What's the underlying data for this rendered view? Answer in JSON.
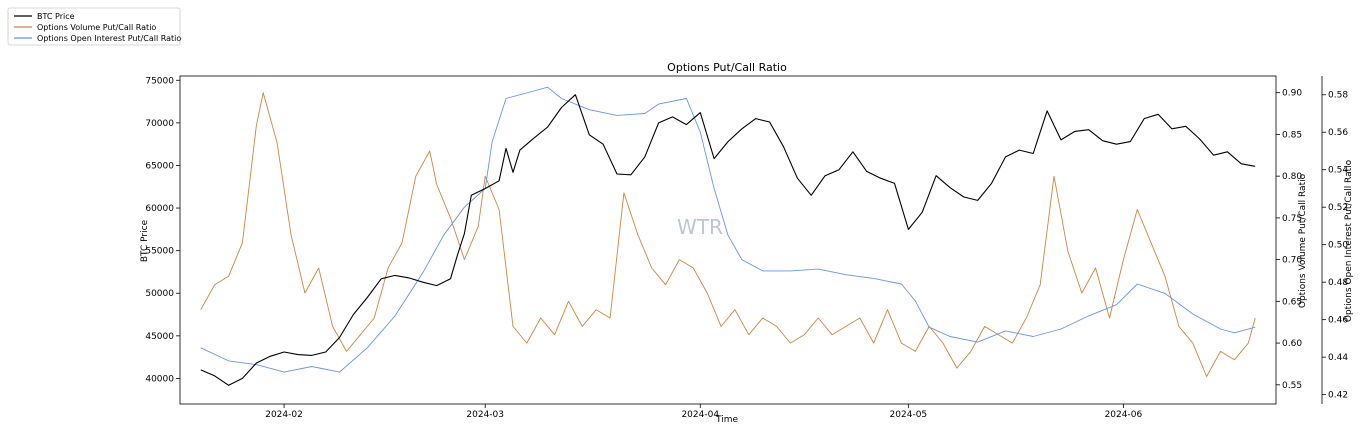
{
  "chart_data": {
    "type": "line",
    "title": "Options Put/Call Ratio",
    "xlabel": "Time",
    "watermark": "WTR",
    "x_ticks": [
      "2024-02",
      "2024-03",
      "2024-04",
      "2024-05",
      "2024-06"
    ],
    "x_range": [
      "2024-01-17",
      "2024-06-23"
    ],
    "legend_position": "top-left, outside plot",
    "grid": false,
    "axes": {
      "left": {
        "label": "BTC Price",
        "ylim": [
          37000,
          75500
        ],
        "ticks": [
          40000,
          45000,
          50000,
          55000,
          60000,
          65000,
          70000,
          75000
        ]
      },
      "right1": {
        "label": "Options Volume Put/Call Ratio",
        "ylim": [
          0.527,
          0.92
        ],
        "ticks": [
          0.55,
          0.6,
          0.65,
          0.7,
          0.75,
          0.8,
          0.85,
          0.9
        ]
      },
      "right2": {
        "label": "Options Open Interest Put/Call Ratio",
        "ylim": [
          0.415,
          0.59
        ],
        "ticks": [
          0.42,
          0.44,
          0.46,
          0.48,
          0.5,
          0.52,
          0.54,
          0.56,
          0.58
        ]
      }
    },
    "series": [
      {
        "name": "BTC Price",
        "axis": "left",
        "color": "#000000",
        "points": [
          [
            "2024-01-20",
            41000
          ],
          [
            "2024-01-22",
            40300
          ],
          [
            "2024-01-24",
            39200
          ],
          [
            "2024-01-26",
            40000
          ],
          [
            "2024-01-28",
            41800
          ],
          [
            "2024-01-30",
            42600
          ],
          [
            "2024-02-01",
            43100
          ],
          [
            "2024-02-03",
            42800
          ],
          [
            "2024-02-05",
            42700
          ],
          [
            "2024-02-07",
            43100
          ],
          [
            "2024-02-09",
            44800
          ],
          [
            "2024-02-11",
            47500
          ],
          [
            "2024-02-13",
            49500
          ],
          [
            "2024-02-15",
            51700
          ],
          [
            "2024-02-17",
            52100
          ],
          [
            "2024-02-19",
            51800
          ],
          [
            "2024-02-21",
            51300
          ],
          [
            "2024-02-23",
            50900
          ],
          [
            "2024-02-25",
            51700
          ],
          [
            "2024-02-26",
            54500
          ],
          [
            "2024-02-27",
            57000
          ],
          [
            "2024-02-28",
            61500
          ],
          [
            "2024-03-01",
            62300
          ],
          [
            "2024-03-03",
            63200
          ],
          [
            "2024-03-04",
            67000
          ],
          [
            "2024-03-05",
            64200
          ],
          [
            "2024-03-06",
            66800
          ],
          [
            "2024-03-08",
            68200
          ],
          [
            "2024-03-10",
            69500
          ],
          [
            "2024-03-12",
            71800
          ],
          [
            "2024-03-14",
            73300
          ],
          [
            "2024-03-16",
            68600
          ],
          [
            "2024-03-18",
            67500
          ],
          [
            "2024-03-20",
            64000
          ],
          [
            "2024-03-22",
            63900
          ],
          [
            "2024-03-24",
            66000
          ],
          [
            "2024-03-26",
            70000
          ],
          [
            "2024-03-28",
            70700
          ],
          [
            "2024-03-30",
            69800
          ],
          [
            "2024-04-01",
            71200
          ],
          [
            "2024-04-03",
            65800
          ],
          [
            "2024-04-05",
            67800
          ],
          [
            "2024-04-07",
            69300
          ],
          [
            "2024-04-09",
            70500
          ],
          [
            "2024-04-11",
            70100
          ],
          [
            "2024-04-13",
            67200
          ],
          [
            "2024-04-15",
            63500
          ],
          [
            "2024-04-17",
            61500
          ],
          [
            "2024-04-19",
            63800
          ],
          [
            "2024-04-21",
            64500
          ],
          [
            "2024-04-23",
            66600
          ],
          [
            "2024-04-25",
            64300
          ],
          [
            "2024-04-27",
            63500
          ],
          [
            "2024-04-29",
            62900
          ],
          [
            "2024-05-01",
            57500
          ],
          [
            "2024-05-03",
            59500
          ],
          [
            "2024-05-05",
            63800
          ],
          [
            "2024-05-07",
            62400
          ],
          [
            "2024-05-09",
            61300
          ],
          [
            "2024-05-11",
            60900
          ],
          [
            "2024-05-13",
            62900
          ],
          [
            "2024-05-15",
            66000
          ],
          [
            "2024-05-17",
            66800
          ],
          [
            "2024-05-19",
            66400
          ],
          [
            "2024-05-21",
            71400
          ],
          [
            "2024-05-23",
            68000
          ],
          [
            "2024-05-25",
            69000
          ],
          [
            "2024-05-27",
            69200
          ],
          [
            "2024-05-29",
            67900
          ],
          [
            "2024-05-31",
            67500
          ],
          [
            "2024-06-02",
            67800
          ],
          [
            "2024-06-04",
            70500
          ],
          [
            "2024-06-06",
            71000
          ],
          [
            "2024-06-08",
            69300
          ],
          [
            "2024-06-10",
            69600
          ],
          [
            "2024-06-12",
            68100
          ],
          [
            "2024-06-14",
            66200
          ],
          [
            "2024-06-16",
            66600
          ],
          [
            "2024-06-18",
            65200
          ],
          [
            "2024-06-20",
            64900
          ]
        ]
      },
      {
        "name": "Options Volume Put/Call Ratio",
        "axis": "right1",
        "color": "#cd853f",
        "points": [
          [
            "2024-01-20",
            0.64
          ],
          [
            "2024-01-22",
            0.67
          ],
          [
            "2024-01-24",
            0.68
          ],
          [
            "2024-01-26",
            0.72
          ],
          [
            "2024-01-28",
            0.86
          ],
          [
            "2024-01-29",
            0.9
          ],
          [
            "2024-01-31",
            0.84
          ],
          [
            "2024-02-02",
            0.73
          ],
          [
            "2024-02-04",
            0.66
          ],
          [
            "2024-02-06",
            0.69
          ],
          [
            "2024-02-08",
            0.62
          ],
          [
            "2024-02-10",
            0.59
          ],
          [
            "2024-02-12",
            0.61
          ],
          [
            "2024-02-14",
            0.63
          ],
          [
            "2024-02-16",
            0.69
          ],
          [
            "2024-02-18",
            0.72
          ],
          [
            "2024-02-20",
            0.8
          ],
          [
            "2024-02-22",
            0.83
          ],
          [
            "2024-02-23",
            0.79
          ],
          [
            "2024-02-25",
            0.75
          ],
          [
            "2024-02-27",
            0.7
          ],
          [
            "2024-02-29",
            0.74
          ],
          [
            "2024-03-01",
            0.8
          ],
          [
            "2024-03-03",
            0.76
          ],
          [
            "2024-03-05",
            0.62
          ],
          [
            "2024-03-07",
            0.6
          ],
          [
            "2024-03-09",
            0.63
          ],
          [
            "2024-03-11",
            0.61
          ],
          [
            "2024-03-13",
            0.65
          ],
          [
            "2024-03-15",
            0.62
          ],
          [
            "2024-03-17",
            0.64
          ],
          [
            "2024-03-19",
            0.63
          ],
          [
            "2024-03-21",
            0.78
          ],
          [
            "2024-03-23",
            0.73
          ],
          [
            "2024-03-25",
            0.69
          ],
          [
            "2024-03-27",
            0.67
          ],
          [
            "2024-03-29",
            0.7
          ],
          [
            "2024-03-31",
            0.69
          ],
          [
            "2024-04-02",
            0.66
          ],
          [
            "2024-04-04",
            0.62
          ],
          [
            "2024-04-06",
            0.64
          ],
          [
            "2024-04-08",
            0.61
          ],
          [
            "2024-04-10",
            0.63
          ],
          [
            "2024-04-12",
            0.62
          ],
          [
            "2024-04-14",
            0.6
          ],
          [
            "2024-04-16",
            0.61
          ],
          [
            "2024-04-18",
            0.63
          ],
          [
            "2024-04-20",
            0.61
          ],
          [
            "2024-04-22",
            0.62
          ],
          [
            "2024-04-24",
            0.63
          ],
          [
            "2024-04-26",
            0.6
          ],
          [
            "2024-04-28",
            0.64
          ],
          [
            "2024-04-30",
            0.6
          ],
          [
            "2024-05-02",
            0.59
          ],
          [
            "2024-05-04",
            0.62
          ],
          [
            "2024-05-06",
            0.6
          ],
          [
            "2024-05-08",
            0.57
          ],
          [
            "2024-05-10",
            0.59
          ],
          [
            "2024-05-12",
            0.62
          ],
          [
            "2024-05-14",
            0.61
          ],
          [
            "2024-05-16",
            0.6
          ],
          [
            "2024-05-18",
            0.63
          ],
          [
            "2024-05-20",
            0.67
          ],
          [
            "2024-05-22",
            0.8
          ],
          [
            "2024-05-24",
            0.71
          ],
          [
            "2024-05-26",
            0.66
          ],
          [
            "2024-05-28",
            0.69
          ],
          [
            "2024-05-30",
            0.63
          ],
          [
            "2024-06-01",
            0.7
          ],
          [
            "2024-06-03",
            0.76
          ],
          [
            "2024-06-05",
            0.72
          ],
          [
            "2024-06-07",
            0.68
          ],
          [
            "2024-06-09",
            0.62
          ],
          [
            "2024-06-11",
            0.6
          ],
          [
            "2024-06-13",
            0.56
          ],
          [
            "2024-06-15",
            0.59
          ],
          [
            "2024-06-17",
            0.58
          ],
          [
            "2024-06-19",
            0.6
          ],
          [
            "2024-06-20",
            0.63
          ]
        ]
      },
      {
        "name": "Options Open Interest Put/Call Ratio",
        "axis": "right2",
        "color": "#6495ed",
        "points": [
          [
            "2024-01-20",
            0.445
          ],
          [
            "2024-01-24",
            0.438
          ],
          [
            "2024-01-28",
            0.436
          ],
          [
            "2024-02-01",
            0.432
          ],
          [
            "2024-02-05",
            0.435
          ],
          [
            "2024-02-09",
            0.432
          ],
          [
            "2024-02-13",
            0.445
          ],
          [
            "2024-02-17",
            0.462
          ],
          [
            "2024-02-21",
            0.485
          ],
          [
            "2024-02-24",
            0.505
          ],
          [
            "2024-02-27",
            0.52
          ],
          [
            "2024-03-01",
            0.53
          ],
          [
            "2024-03-02",
            0.555
          ],
          [
            "2024-03-04",
            0.578
          ],
          [
            "2024-03-08",
            0.582
          ],
          [
            "2024-03-10",
            0.584
          ],
          [
            "2024-03-12",
            0.578
          ],
          [
            "2024-03-16",
            0.572
          ],
          [
            "2024-03-20",
            0.569
          ],
          [
            "2024-03-24",
            0.57
          ],
          [
            "2024-03-26",
            0.575
          ],
          [
            "2024-03-30",
            0.578
          ],
          [
            "2024-04-01",
            0.56
          ],
          [
            "2024-04-03",
            0.53
          ],
          [
            "2024-04-05",
            0.505
          ],
          [
            "2024-04-07",
            0.492
          ],
          [
            "2024-04-10",
            0.486
          ],
          [
            "2024-04-14",
            0.486
          ],
          [
            "2024-04-18",
            0.487
          ],
          [
            "2024-04-22",
            0.484
          ],
          [
            "2024-04-26",
            0.482
          ],
          [
            "2024-04-30",
            0.479
          ],
          [
            "2024-05-02",
            0.47
          ],
          [
            "2024-05-04",
            0.456
          ],
          [
            "2024-05-07",
            0.451
          ],
          [
            "2024-05-11",
            0.448
          ],
          [
            "2024-05-15",
            0.454
          ],
          [
            "2024-05-19",
            0.451
          ],
          [
            "2024-05-23",
            0.455
          ],
          [
            "2024-05-27",
            0.462
          ],
          [
            "2024-05-31",
            0.468
          ],
          [
            "2024-06-03",
            0.479
          ],
          [
            "2024-06-07",
            0.474
          ],
          [
            "2024-06-11",
            0.463
          ],
          [
            "2024-06-15",
            0.455
          ],
          [
            "2024-06-17",
            0.453
          ],
          [
            "2024-06-20",
            0.456
          ]
        ]
      }
    ]
  }
}
